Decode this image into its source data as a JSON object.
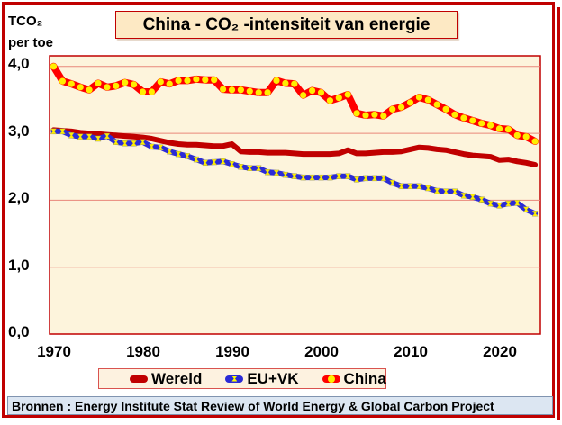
{
  "chart_data": {
    "type": "line",
    "title": "China - CO₂ -intensiteit van energie",
    "ylabel_line1": "TCO₂",
    "ylabel_line2": "per toe",
    "xlabel": "",
    "ylim": [
      0,
      4
    ],
    "xlim": [
      1970,
      2024
    ],
    "yticks": [
      "0,0",
      "1,0",
      "2,0",
      "3,0",
      "4,0"
    ],
    "ytick_values": [
      0,
      1,
      2,
      3,
      4
    ],
    "xticks": [
      "1970",
      "1980",
      "1990",
      "2000",
      "2010",
      "2020"
    ],
    "xtick_values": [
      1970,
      1980,
      1990,
      2000,
      2010,
      2020
    ],
    "grid": "horizontal",
    "legend_position": "bottom",
    "x": [
      1970,
      1971,
      1972,
      1973,
      1974,
      1975,
      1976,
      1977,
      1978,
      1979,
      1980,
      1981,
      1982,
      1983,
      1984,
      1985,
      1986,
      1987,
      1988,
      1989,
      1990,
      1991,
      1992,
      1993,
      1994,
      1995,
      1996,
      1997,
      1998,
      1999,
      2000,
      2001,
      2002,
      2003,
      2004,
      2005,
      2006,
      2007,
      2008,
      2009,
      2010,
      2011,
      2012,
      2013,
      2014,
      2015,
      2016,
      2017,
      2018,
      2019,
      2020,
      2021,
      2022,
      2023,
      2024
    ],
    "series": [
      {
        "name": "Wereld",
        "color": "#c00000",
        "values": [
          3.05,
          3.04,
          3.03,
          3.01,
          3.0,
          2.99,
          2.98,
          2.97,
          2.96,
          2.95,
          2.94,
          2.92,
          2.89,
          2.86,
          2.84,
          2.83,
          2.83,
          2.82,
          2.81,
          2.81,
          2.84,
          2.73,
          2.72,
          2.72,
          2.71,
          2.71,
          2.71,
          2.7,
          2.69,
          2.69,
          2.69,
          2.69,
          2.7,
          2.75,
          2.7,
          2.7,
          2.71,
          2.72,
          2.72,
          2.73,
          2.76,
          2.79,
          2.78,
          2.76,
          2.75,
          2.72,
          2.69,
          2.67,
          2.66,
          2.65,
          2.6,
          2.61,
          2.58,
          2.56,
          2.53
        ]
      },
      {
        "name": "EU+VK",
        "color": "#2b2bd6",
        "values": [
          3.03,
          3.03,
          2.97,
          2.95,
          2.95,
          2.92,
          2.96,
          2.87,
          2.85,
          2.85,
          2.87,
          2.8,
          2.79,
          2.73,
          2.69,
          2.66,
          2.61,
          2.56,
          2.57,
          2.58,
          2.54,
          2.5,
          2.48,
          2.48,
          2.42,
          2.41,
          2.38,
          2.36,
          2.34,
          2.34,
          2.34,
          2.34,
          2.36,
          2.36,
          2.31,
          2.33,
          2.33,
          2.33,
          2.26,
          2.21,
          2.21,
          2.21,
          2.18,
          2.14,
          2.13,
          2.13,
          2.07,
          2.05,
          2.01,
          1.95,
          1.92,
          1.95,
          1.96,
          1.86,
          1.8
        ]
      },
      {
        "name": "China",
        "color": "#ff0000",
        "marker_color": "#ffee00",
        "values": [
          4.0,
          3.78,
          3.74,
          3.69,
          3.65,
          3.75,
          3.69,
          3.71,
          3.76,
          3.73,
          3.62,
          3.62,
          3.77,
          3.74,
          3.79,
          3.79,
          3.81,
          3.8,
          3.8,
          3.66,
          3.65,
          3.65,
          3.63,
          3.61,
          3.61,
          3.79,
          3.75,
          3.74,
          3.57,
          3.64,
          3.61,
          3.49,
          3.53,
          3.58,
          3.3,
          3.27,
          3.28,
          3.26,
          3.36,
          3.39,
          3.46,
          3.54,
          3.5,
          3.43,
          3.36,
          3.28,
          3.23,
          3.19,
          3.15,
          3.12,
          3.07,
          3.06,
          2.97,
          2.95,
          2.88
        ]
      }
    ],
    "source": "Bronnen : Energy Institute Stat Review of World Energy & Global Carbon Project"
  }
}
